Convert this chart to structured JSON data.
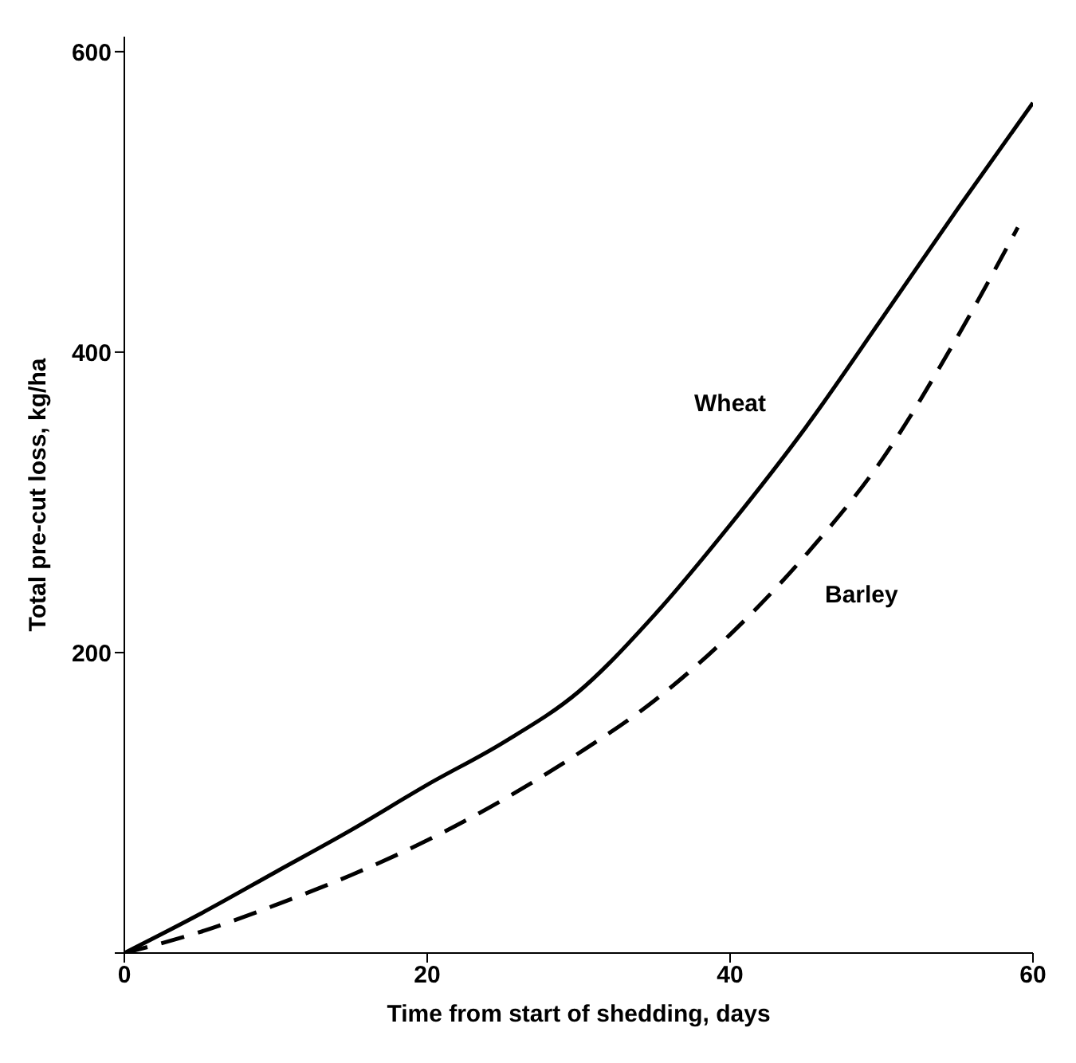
{
  "chart_data": {
    "type": "line",
    "xlabel": "Time from start of shedding, days",
    "ylabel": "Total pre-cut loss, kg/ha",
    "xlim": [
      0,
      60
    ],
    "xticks": [
      0,
      20,
      40,
      60
    ],
    "ylim": [
      0,
      610
    ],
    "yticks": [
      {
        "value": 0,
        "label": null
      },
      200,
      400,
      600
    ],
    "marker": "none",
    "series": [
      {
        "name": "Wheat",
        "color": "#000000",
        "line_style": "solid",
        "x": [
          0,
          5,
          10,
          15,
          20,
          25,
          30,
          35,
          40,
          45,
          50,
          55,
          60
        ],
        "values": [
          0,
          26,
          54,
          82,
          112,
          140,
          174,
          225,
          285,
          350,
          422,
          495,
          566
        ]
      },
      {
        "name": "Barley",
        "color": "#000000",
        "line_style": "dashed",
        "x": [
          0,
          5,
          10,
          15,
          20,
          25,
          30,
          35,
          40,
          45,
          50,
          55,
          59
        ],
        "values": [
          0,
          14,
          32,
          52,
          75,
          102,
          133,
          168,
          212,
          265,
          328,
          410,
          483
        ]
      }
    ]
  }
}
